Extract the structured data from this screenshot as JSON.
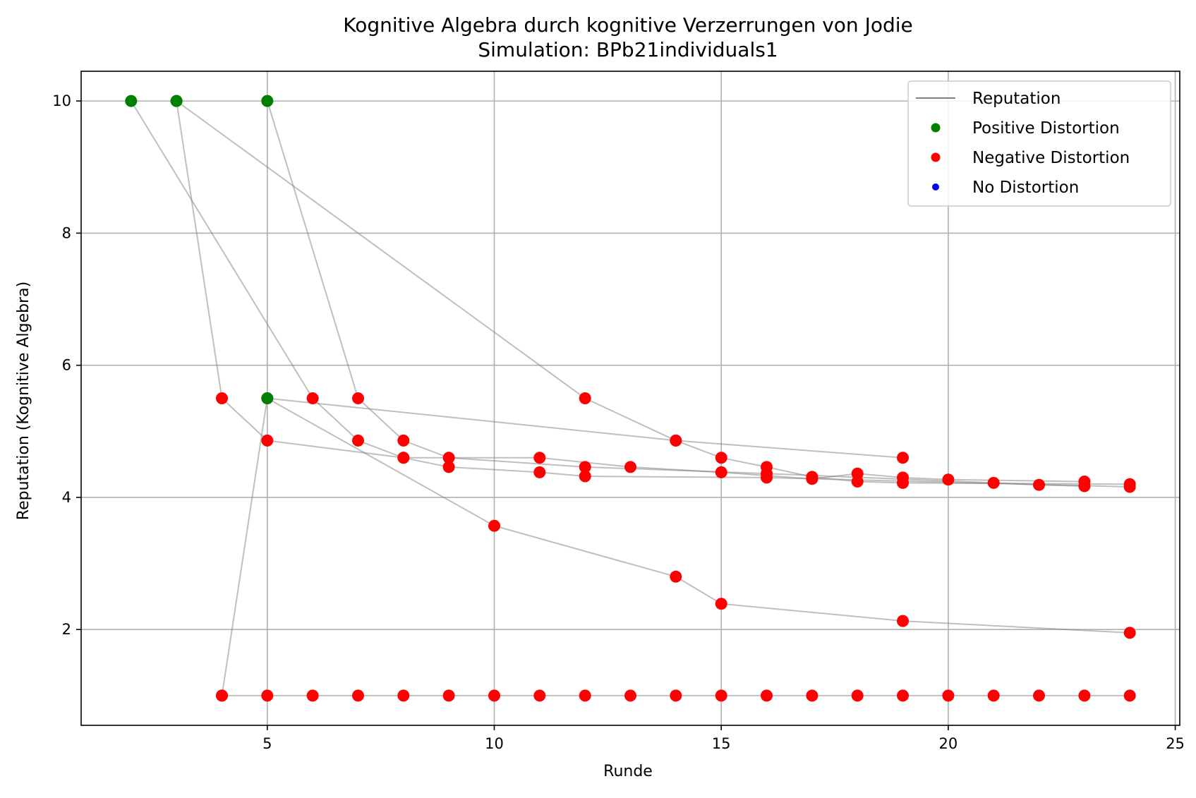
{
  "chart_data": {
    "type": "scatter",
    "title": "Kognitive Algebra durch kognitive Verzerrungen von Jodie",
    "subtitle": "Simulation: BPb21individuals1",
    "xlabel": "Runde",
    "ylabel": "Reputation (Kognitive Algebra)",
    "xlim": [
      0.9,
      25.1
    ],
    "ylim": [
      0.55,
      10.45
    ],
    "x_ticks": [
      5,
      10,
      15,
      20,
      25
    ],
    "y_ticks": [
      2,
      4,
      6,
      8,
      10
    ],
    "grid": true,
    "legend_position": "top-right",
    "legend": [
      {
        "label": "Reputation",
        "kind": "line",
        "color": "#808080"
      },
      {
        "label": "Positive Distortion",
        "kind": "marker",
        "color": "#008000"
      },
      {
        "label": "Negative Distortion",
        "kind": "marker",
        "color": "#ff0000"
      },
      {
        "label": "No Distortion",
        "kind": "marker",
        "color": "#0000ff"
      }
    ],
    "line_color": "#808080",
    "colors": {
      "positive": "#008000",
      "negative": "#ff0000",
      "none": "#0000ff"
    },
    "series": [
      {
        "points": [
          {
            "x": 2,
            "y": 10,
            "d": "positive"
          },
          {
            "x": 6,
            "y": 5.5,
            "d": "negative"
          },
          {
            "x": 7,
            "y": 4.86,
            "d": "negative"
          },
          {
            "x": 8,
            "y": 4.6,
            "d": "negative"
          },
          {
            "x": 9,
            "y": 4.46,
            "d": "negative"
          },
          {
            "x": 11,
            "y": 4.38,
            "d": "negative"
          },
          {
            "x": 12,
            "y": 4.32,
            "d": "negative"
          },
          {
            "x": 16,
            "y": 4.3,
            "d": "negative"
          },
          {
            "x": 24,
            "y": 4.16,
            "d": "negative"
          }
        ]
      },
      {
        "points": [
          {
            "x": 3,
            "y": 10,
            "d": "positive"
          },
          {
            "x": 12,
            "y": 5.5,
            "d": "negative"
          },
          {
            "x": 14,
            "y": 4.86,
            "d": "negative"
          },
          {
            "x": 15,
            "y": 4.6,
            "d": "negative"
          },
          {
            "x": 16,
            "y": 4.46,
            "d": "negative"
          },
          {
            "x": 17,
            "y": 4.31,
            "d": "negative"
          },
          {
            "x": 18,
            "y": 4.24,
            "d": "negative"
          },
          {
            "x": 19,
            "y": 4.22,
            "d": "negative"
          },
          {
            "x": 24,
            "y": 4.2,
            "d": "negative"
          }
        ]
      },
      {
        "points": [
          {
            "x": 3,
            "y": 10,
            "d": "positive"
          },
          {
            "x": 4,
            "y": 5.5,
            "d": "negative"
          },
          {
            "x": 5,
            "y": 4.86,
            "d": "negative"
          },
          {
            "x": 8,
            "y": 4.6,
            "d": "negative"
          },
          {
            "x": 11,
            "y": 4.6,
            "d": "negative"
          },
          {
            "x": 13,
            "y": 4.46,
            "d": "negative"
          },
          {
            "x": 15,
            "y": 4.38,
            "d": "negative"
          },
          {
            "x": 17,
            "y": 4.28,
            "d": "negative"
          },
          {
            "x": 18,
            "y": 4.36,
            "d": "negative"
          },
          {
            "x": 19,
            "y": 4.3,
            "d": "negative"
          },
          {
            "x": 20,
            "y": 4.27,
            "d": "negative"
          },
          {
            "x": 23,
            "y": 4.24,
            "d": "negative"
          }
        ]
      },
      {
        "points": [
          {
            "x": 5,
            "y": 10,
            "d": "positive"
          },
          {
            "x": 7,
            "y": 5.5,
            "d": "negative"
          },
          {
            "x": 8,
            "y": 4.86,
            "d": "negative"
          },
          {
            "x": 9,
            "y": 4.6,
            "d": "negative"
          },
          {
            "x": 12,
            "y": 4.46,
            "d": "negative"
          },
          {
            "x": 16,
            "y": 4.36,
            "d": "negative"
          },
          {
            "x": 21,
            "y": 4.22,
            "d": "negative"
          },
          {
            "x": 22,
            "y": 4.19,
            "d": "negative"
          },
          {
            "x": 23,
            "y": 4.17,
            "d": "negative"
          }
        ]
      },
      {
        "points": [
          {
            "x": 4,
            "y": 1,
            "d": "negative"
          },
          {
            "x": 5,
            "y": 5.5,
            "d": "positive"
          },
          {
            "x": 14,
            "y": 4.86,
            "d": "negative"
          },
          {
            "x": 19,
            "y": 4.6,
            "d": "negative"
          }
        ]
      },
      {
        "points": [
          {
            "x": 5,
            "y": 5.5,
            "d": "positive"
          },
          {
            "x": 10,
            "y": 3.57,
            "d": "negative"
          },
          {
            "x": 14,
            "y": 2.8,
            "d": "negative"
          },
          {
            "x": 15,
            "y": 2.39,
            "d": "negative"
          },
          {
            "x": 19,
            "y": 2.13,
            "d": "negative"
          },
          {
            "x": 24,
            "y": 1.95,
            "d": "negative"
          }
        ]
      },
      {
        "points": [
          {
            "x": 4,
            "y": 1,
            "d": "negative"
          },
          {
            "x": 5,
            "y": 1,
            "d": "negative"
          },
          {
            "x": 6,
            "y": 1,
            "d": "negative"
          },
          {
            "x": 7,
            "y": 1,
            "d": "negative"
          },
          {
            "x": 8,
            "y": 1,
            "d": "negative"
          },
          {
            "x": 9,
            "y": 1,
            "d": "negative"
          },
          {
            "x": 10,
            "y": 1,
            "d": "negative"
          },
          {
            "x": 11,
            "y": 1,
            "d": "negative"
          },
          {
            "x": 12,
            "y": 1,
            "d": "negative"
          },
          {
            "x": 13,
            "y": 1,
            "d": "negative"
          },
          {
            "x": 14,
            "y": 1,
            "d": "negative"
          },
          {
            "x": 15,
            "y": 1,
            "d": "negative"
          },
          {
            "x": 16,
            "y": 1,
            "d": "negative"
          },
          {
            "x": 17,
            "y": 1,
            "d": "negative"
          },
          {
            "x": 18,
            "y": 1,
            "d": "negative"
          },
          {
            "x": 19,
            "y": 1,
            "d": "negative"
          },
          {
            "x": 20,
            "y": 1,
            "d": "negative"
          },
          {
            "x": 21,
            "y": 1,
            "d": "negative"
          },
          {
            "x": 22,
            "y": 1,
            "d": "negative"
          },
          {
            "x": 23,
            "y": 1,
            "d": "negative"
          },
          {
            "x": 24,
            "y": 1,
            "d": "negative"
          }
        ]
      }
    ]
  }
}
